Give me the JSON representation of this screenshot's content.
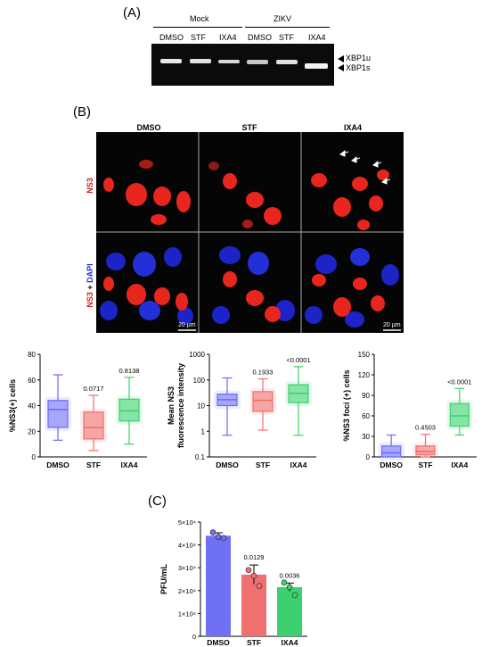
{
  "panel_a": {
    "label": "(A)",
    "group_mock": "Mock",
    "group_zikv": "ZIKV",
    "lanes": [
      "DMSO",
      "STF",
      "IXA4",
      "DMSO",
      "STF",
      "IXA4"
    ],
    "band_upper": "XBP1u",
    "band_lower": "XBP1s"
  },
  "panel_b": {
    "label": "(B)",
    "conditions": [
      "DMSO",
      "STF",
      "IXA4"
    ],
    "row_label_top": "NS3",
    "row_label_bottom_a": "NS3",
    "row_label_bottom_plus": " + ",
    "row_label_bottom_b": "DAPI",
    "scale_bar": "20 µm"
  },
  "panel_c": {
    "label": "(C)"
  },
  "chart_data": [
    {
      "type": "box",
      "ylabel": "%NS3(+) cells",
      "categories": [
        "DMSO",
        "STF",
        "IXA4"
      ],
      "yticks": [
        "0",
        "20",
        "40",
        "60",
        "80"
      ],
      "ylim": [
        0,
        80
      ],
      "colors": [
        "#6b6bf5",
        "#f26b6b",
        "#3bd16b"
      ],
      "boxes": [
        {
          "min": 13,
          "q1": 23,
          "median": 37,
          "q3": 44,
          "max": 64
        },
        {
          "min": 5,
          "q1": 14,
          "median": 23,
          "q3": 35,
          "max": 48
        },
        {
          "min": 10,
          "q1": 28,
          "median": 36,
          "q3": 45,
          "max": 62
        }
      ],
      "pvalues": [
        "",
        "0.0717",
        "0.8138"
      ]
    },
    {
      "type": "box",
      "scale": "log",
      "ylabel_line1": "Mean NS3",
      "ylabel_line2": "fluorescence intensity",
      "categories": [
        "DMSO",
        "STF",
        "IXA4"
      ],
      "yticks": [
        "0.1",
        "1",
        "10",
        "100",
        "1000"
      ],
      "ylim": [
        0.1,
        1000
      ],
      "colors": [
        "#6b6bf5",
        "#f26b6b",
        "#3bd16b"
      ],
      "boxes": [
        {
          "min": 0.7,
          "q1": 10,
          "median": 17,
          "q3": 28,
          "max": 120
        },
        {
          "min": 1.1,
          "q1": 6,
          "median": 16,
          "q3": 35,
          "max": 110
        },
        {
          "min": 0.7,
          "q1": 13,
          "median": 30,
          "q3": 65,
          "max": 330
        }
      ],
      "pvalues": [
        "",
        "0.1933",
        "<0.0001"
      ]
    },
    {
      "type": "box",
      "ylabel": "%NS3 foci (+) cells",
      "categories": [
        "DMSO",
        "STF",
        "IXA4"
      ],
      "yticks": [
        "0",
        "30",
        "60",
        "90",
        "120",
        "150"
      ],
      "ylim": [
        0,
        150
      ],
      "colors": [
        "#6b6bf5",
        "#f26b6b",
        "#3bd16b"
      ],
      "boxes": [
        {
          "min": 0,
          "q1": 0,
          "median": 6,
          "q3": 16,
          "max": 32
        },
        {
          "min": 0,
          "q1": 3,
          "median": 8,
          "q3": 16,
          "max": 33
        },
        {
          "min": 32,
          "q1": 45,
          "median": 60,
          "q3": 78,
          "max": 100
        }
      ],
      "pvalues": [
        "",
        "0.4503",
        "<0.0001"
      ]
    },
    {
      "type": "bar",
      "ylabel": "PFU/mL",
      "categories": [
        "DMSO",
        "STF",
        "IXA4"
      ],
      "yticks": [
        "0",
        "1×10⁴",
        "2×10⁴",
        "3×10⁴",
        "4×10⁴",
        "5×10⁴"
      ],
      "ylim": [
        0,
        50000
      ],
      "colors": [
        "#7070f5",
        "#f07070",
        "#3cd070"
      ],
      "values": [
        44000,
        27000,
        21500
      ],
      "errors": [
        1300,
        4200,
        1800
      ],
      "points": [
        [
          45500,
          43500,
          43000
        ],
        [
          29000,
          26500,
          22000
        ],
        [
          23500,
          21500,
          18000
        ]
      ],
      "pvalues": [
        "",
        "0.0129",
        "0.0036"
      ]
    }
  ]
}
